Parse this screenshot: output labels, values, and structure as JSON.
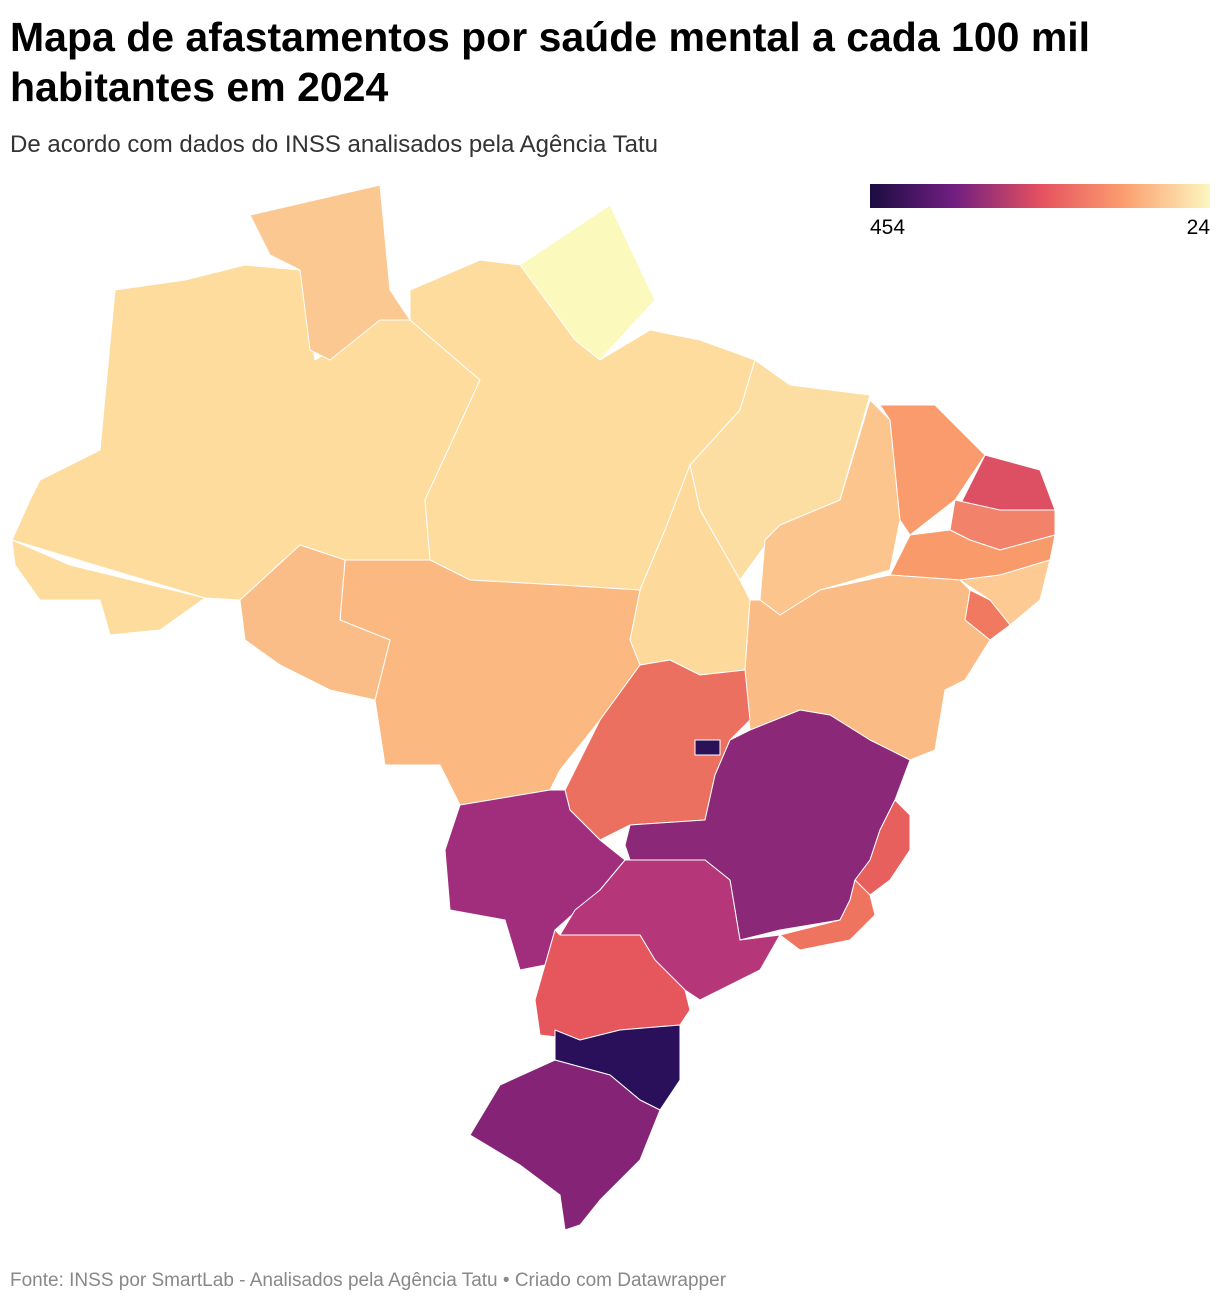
{
  "header": {
    "title": "Mapa de afastamentos por saúde mental a cada 100 mil habitantes em 2024",
    "subtitle": "De acordo com dados do INSS analisados pela Agência Tatu"
  },
  "legend": {
    "max": 454,
    "min": 24
  },
  "footer": "Fonte: INSS por SmartLab - Analisados pela Agência Tatu • Criado com Datawrapper"
}
